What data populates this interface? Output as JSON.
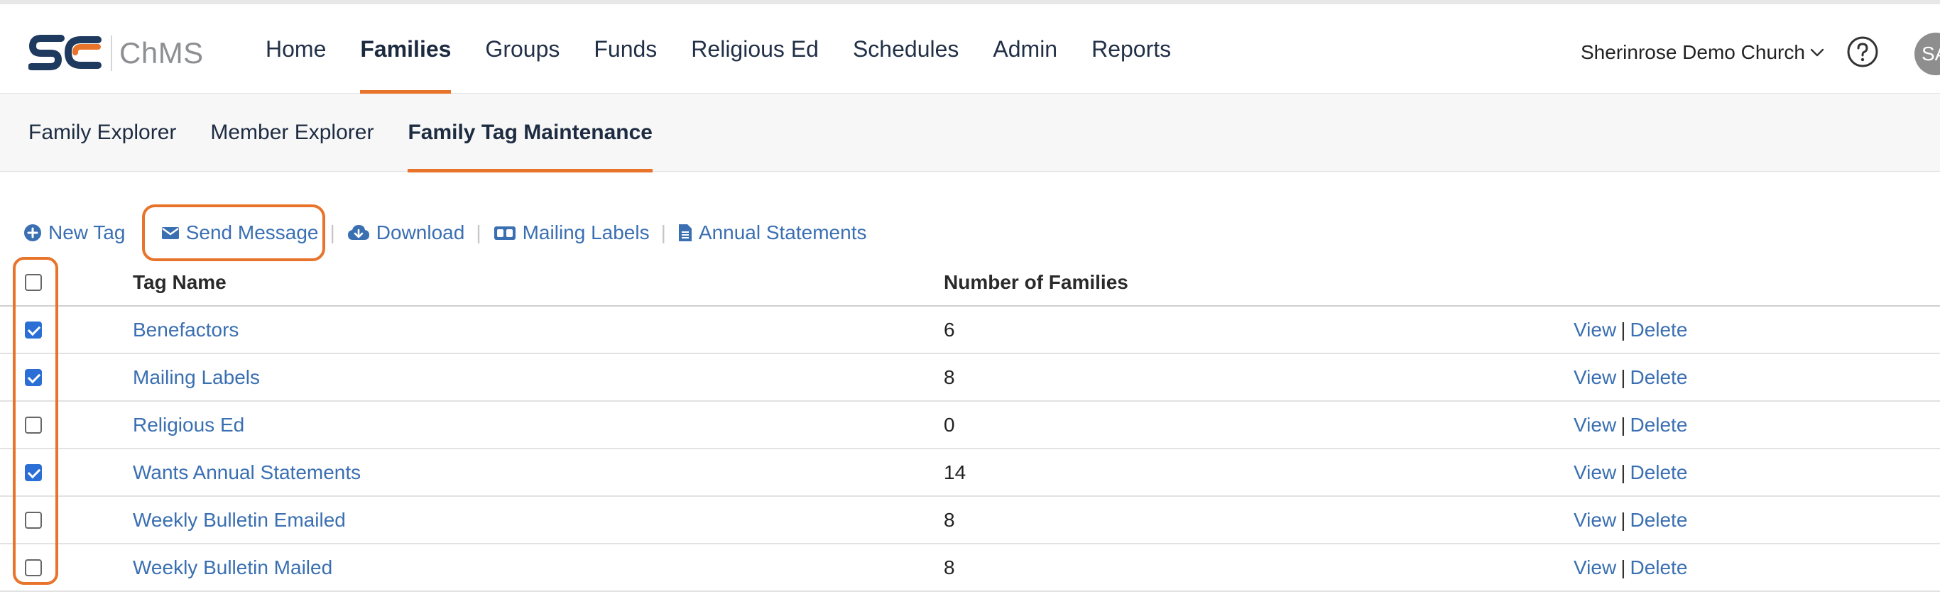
{
  "header": {
    "app_name": "ChMS",
    "nav": [
      {
        "label": "Home",
        "active": false
      },
      {
        "label": "Families",
        "active": true
      },
      {
        "label": "Groups",
        "active": false
      },
      {
        "label": "Funds",
        "active": false
      },
      {
        "label": "Religious Ed",
        "active": false
      },
      {
        "label": "Schedules",
        "active": false
      },
      {
        "label": "Admin",
        "active": false
      },
      {
        "label": "Reports",
        "active": false
      }
    ],
    "church_name": "Sherinrose Demo Church",
    "avatar_initials": "SA"
  },
  "subnav": [
    {
      "label": "Family Explorer",
      "active": false
    },
    {
      "label": "Member Explorer",
      "active": false
    },
    {
      "label": "Family Tag Maintenance",
      "active": true
    }
  ],
  "toolbar": {
    "new_tag": "New Tag",
    "send_message": "Send Message",
    "download": "Download",
    "mailing_labels": "Mailing Labels",
    "annual_statements": "Annual Statements",
    "separator": "|"
  },
  "table": {
    "headers": {
      "tag_name": "Tag Name",
      "number_of_families": "Number of Families"
    },
    "select_all_checked": false,
    "rows": [
      {
        "name": "Benefactors",
        "count": "6",
        "checked": true
      },
      {
        "name": "Mailing Labels",
        "count": "8",
        "checked": true
      },
      {
        "name": "Religious Ed",
        "count": "0",
        "checked": false
      },
      {
        "name": "Wants Annual Statements",
        "count": "14",
        "checked": true
      },
      {
        "name": "Weekly Bulletin Emailed",
        "count": "8",
        "checked": false
      },
      {
        "name": "Weekly Bulletin Mailed",
        "count": "8",
        "checked": false
      }
    ],
    "actions": {
      "view": "View",
      "delete": "Delete",
      "separator": "|"
    }
  },
  "colors": {
    "accent_orange": "#e8742c",
    "link_blue": "#3a6fb2",
    "checkbox_blue": "#2b6fd6",
    "logo_navy": "#1f3a5f"
  },
  "icons": {
    "new_tag": "plus-circle-icon",
    "send_message": "envelope-icon",
    "download": "cloud-download-icon",
    "mailing_labels": "address-card-icon",
    "annual_statements": "document-icon",
    "help": "question-circle-icon",
    "church_dropdown": "chevron-down-icon"
  }
}
